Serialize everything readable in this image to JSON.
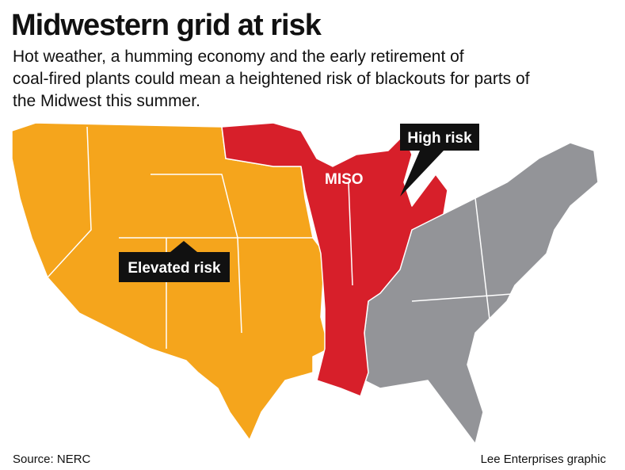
{
  "header": {
    "title": "Midwestern grid at risk",
    "subtitle_lines": [
      "Hot weather, a humming economy and the early retirement of",
      "coal-fired plants could mean a heightened risk of blackouts for parts of",
      "the Midwest this summer."
    ]
  },
  "map": {
    "labels": {
      "high_risk": "High risk",
      "miso": "MISO",
      "elevated_risk": "Elevated risk"
    }
  },
  "footer": {
    "source": "Source: NERC",
    "credit": "Lee Enterprises graphic"
  }
}
